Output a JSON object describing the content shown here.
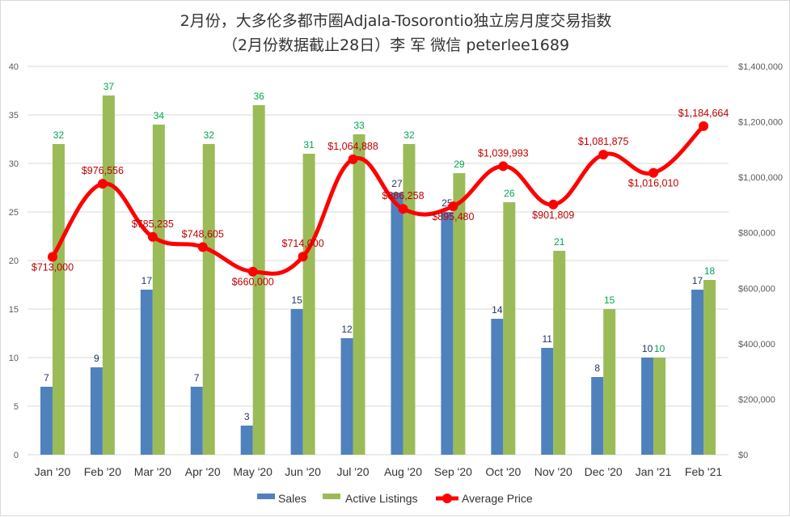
{
  "chart_data": {
    "type": "bar+line",
    "title": "2月份，大多伦多都市圈Adjala-Tosorontio独立房月度交易指数",
    "subtitle": "（2月份数据截止28日）李 军  微信  peterlee1689",
    "categories": [
      "Jan '20",
      "Feb '20",
      "Mar '20",
      "Apr '20",
      "May '20",
      "Jun '20",
      "Jul '20",
      "Aug '20",
      "Sep '20",
      "Oct '20",
      "Nov '20",
      "Dec '20",
      "Jan '21",
      "Feb '21"
    ],
    "series": [
      {
        "name": "Sales",
        "type": "bar",
        "axis": "left",
        "color": "#4f81bd",
        "label_color": "#1f3864",
        "values": [
          7,
          9,
          17,
          7,
          3,
          15,
          12,
          27,
          25,
          14,
          11,
          8,
          10,
          17
        ]
      },
      {
        "name": "Active Listings",
        "type": "bar",
        "axis": "left",
        "color": "#9bbb59",
        "label_color": "#00a651",
        "values": [
          32,
          37,
          34,
          32,
          36,
          31,
          33,
          32,
          29,
          26,
          21,
          15,
          10,
          18
        ]
      },
      {
        "name": "Average Price",
        "type": "line",
        "axis": "right",
        "color": "#ff0000",
        "label_color": "#c00000",
        "values": [
          713000,
          976556,
          785235,
          748605,
          660000,
          714000,
          1064888,
          886258,
          895480,
          1039993,
          901809,
          1081875,
          1016010,
          1184664
        ],
        "labels": [
          "$713,000",
          "$976,556",
          "$785,235",
          "$748,605",
          "$660,000",
          "$714,000",
          "$1,064,888",
          "$886,258",
          "$895,480",
          "$1,039,993",
          "$901,809",
          "$1,081,875",
          "$1,016,010",
          "$1,184,664"
        ]
      }
    ],
    "y_left": {
      "min": 0,
      "max": 40,
      "step": 5,
      "ticks": [
        "0",
        "5",
        "10",
        "15",
        "20",
        "25",
        "30",
        "35",
        "40"
      ]
    },
    "y_right": {
      "min": 0,
      "max": 1400000,
      "step": 200000,
      "ticks": [
        "$0",
        "$200,000",
        "$400,000",
        "$600,000",
        "$800,000",
        "$1,000,000",
        "$1,200,000",
        "$1,400,000"
      ]
    },
    "grid": true,
    "legend_position": "bottom"
  }
}
